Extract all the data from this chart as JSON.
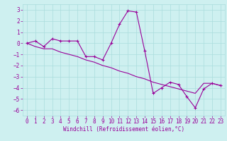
{
  "xlabel": "Windchill (Refroidissement éolien,°C)",
  "bg_color": "#cef0f0",
  "grid_color": "#aadddd",
  "line_color": "#990099",
  "xlim": [
    -0.5,
    23.5
  ],
  "ylim": [
    -6.5,
    3.5
  ],
  "yticks": [
    -6,
    -5,
    -4,
    -3,
    -2,
    -1,
    0,
    1,
    2,
    3
  ],
  "xticks": [
    0,
    1,
    2,
    3,
    4,
    5,
    6,
    7,
    8,
    9,
    10,
    11,
    12,
    13,
    14,
    15,
    16,
    17,
    18,
    19,
    20,
    21,
    22,
    23
  ],
  "line1_x": [
    0,
    1,
    2,
    3,
    4,
    5,
    6,
    7,
    8,
    9,
    10,
    11,
    12,
    13,
    14,
    15,
    16,
    17,
    18,
    19,
    20,
    21,
    22,
    23
  ],
  "line1_y": [
    0.0,
    0.2,
    -0.3,
    0.4,
    0.2,
    0.2,
    0.2,
    -1.2,
    -1.2,
    -1.5,
    0.0,
    1.7,
    2.9,
    2.8,
    -0.7,
    -4.5,
    -4.0,
    -3.5,
    -3.7,
    -4.8,
    -5.8,
    -4.1,
    -3.6,
    -3.8
  ],
  "line2_x": [
    0,
    1,
    2,
    3,
    4,
    5,
    6,
    7,
    8,
    9,
    10,
    11,
    12,
    13,
    14,
    15,
    16,
    17,
    18,
    19,
    20,
    21,
    22,
    23
  ],
  "line2_y": [
    0.0,
    -0.3,
    -0.5,
    -0.5,
    -0.8,
    -1.0,
    -1.2,
    -1.5,
    -1.7,
    -2.0,
    -2.2,
    -2.5,
    -2.7,
    -3.0,
    -3.2,
    -3.5,
    -3.7,
    -3.9,
    -4.1,
    -4.3,
    -4.5,
    -3.6,
    -3.6,
    -3.8
  ],
  "tick_fontsize": 5.5,
  "xlabel_fontsize": 5.5
}
